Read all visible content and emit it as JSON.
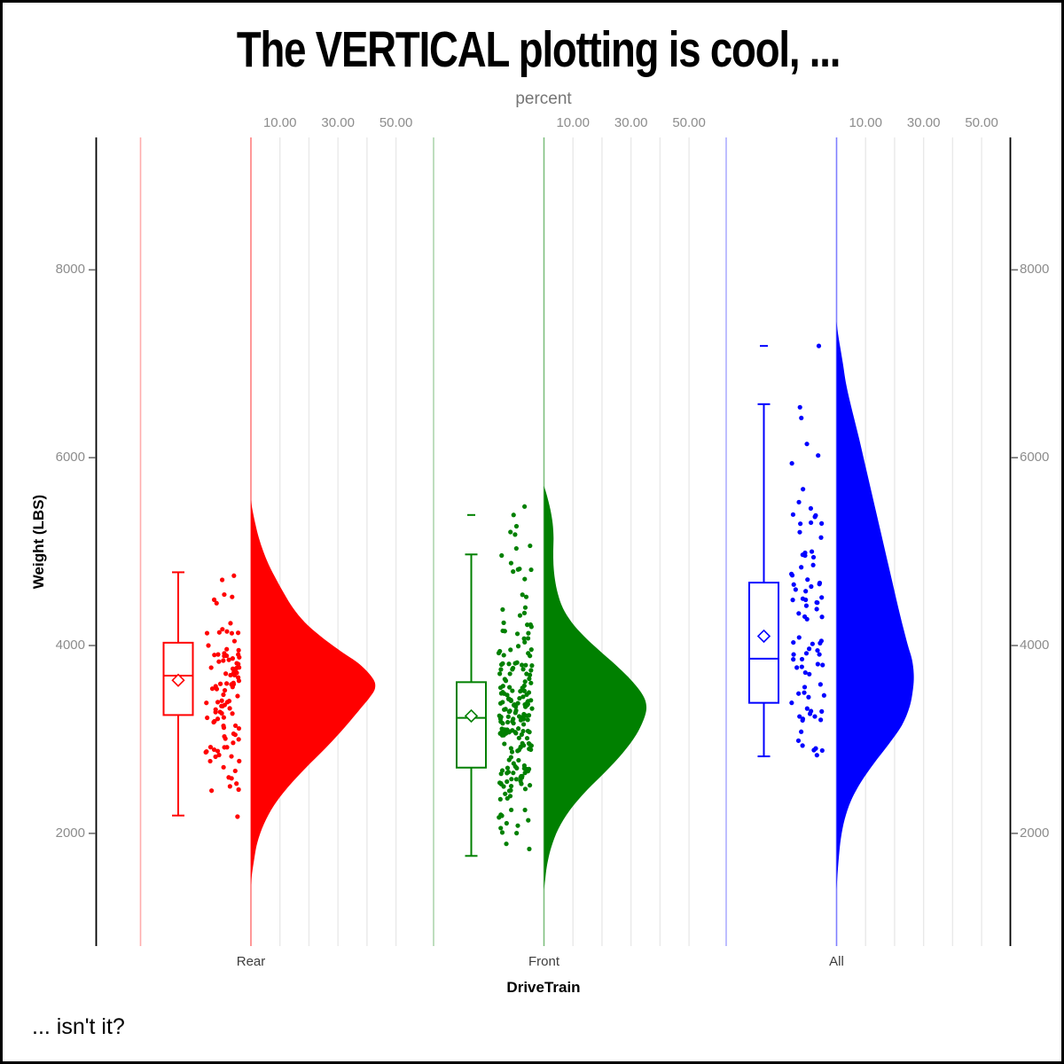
{
  "title": "The VERTICAL plotting is cool, ...",
  "caption": "... isn't it?",
  "colors": {
    "grid": "#e9e9e9",
    "axis_line": "#000000",
    "tick": "#6e6e6e",
    "numeric_label": "#8c8c8c",
    "category_label": "#3d3d3d",
    "percent_title": "#757575",
    "rear": "#ff0000",
    "front": "#008000",
    "all": "#0000ff"
  },
  "chart_data": {
    "type": "raincloud (half-violin + box + jitter), vertical",
    "x_axis": {
      "title": "DriveTrain",
      "categories": [
        "Rear",
        "Front",
        "All"
      ]
    },
    "weight_axis": {
      "title": "Weight (LBS)",
      "tick_labels": [
        "2000",
        "4000",
        "6000",
        "8000"
      ],
      "tick_values": [
        2000,
        4000,
        6000,
        8000
      ],
      "range_min": 800,
      "range_max": 9410,
      "mirrored_right_axis": true
    },
    "percent_axis": {
      "title": "percent",
      "tick_labels": [
        "10.00",
        "30.00",
        "50.00"
      ],
      "tick_values": [
        10,
        30,
        50
      ],
      "gridline_values": [
        10,
        20,
        30,
        40,
        50
      ]
    },
    "series": [
      {
        "name": "Rear",
        "color": "#ff0000",
        "box": {
          "whisker_low": 2190,
          "q1": 3260,
          "median": 3680,
          "mean": 3630,
          "q3": 4030,
          "whisker_high": 4780,
          "outliers": []
        },
        "violin_profile_weight_percent": [
          [
            1450,
            0
          ],
          [
            1550,
            0.3
          ],
          [
            1700,
            1
          ],
          [
            1900,
            2.2
          ],
          [
            2100,
            4.5
          ],
          [
            2300,
            8
          ],
          [
            2500,
            13
          ],
          [
            2700,
            19
          ],
          [
            2900,
            25.5
          ],
          [
            3100,
            31.5
          ],
          [
            3300,
            37
          ],
          [
            3450,
            41
          ],
          [
            3550,
            42.8
          ],
          [
            3650,
            42
          ],
          [
            3800,
            37.5
          ],
          [
            3950,
            30.5
          ],
          [
            4100,
            24
          ],
          [
            4250,
            18.5
          ],
          [
            4400,
            14.5
          ],
          [
            4550,
            11.5
          ],
          [
            4700,
            8.8
          ],
          [
            4850,
            6.3
          ],
          [
            5000,
            4.3
          ],
          [
            5150,
            2.7
          ],
          [
            5300,
            1.5
          ],
          [
            5450,
            0.5
          ],
          [
            5550,
            0
          ]
        ],
        "jitter": {
          "count": 105,
          "seed": 7,
          "min": 2170,
          "max": 4760,
          "extra_points": []
        }
      },
      {
        "name": "Front",
        "color": "#008000",
        "box": {
          "whisker_low": 1760,
          "q1": 2700,
          "median": 3230,
          "mean": 3250,
          "q3": 3610,
          "whisker_high": 4970,
          "outliers": [
            5390
          ]
        },
        "violin_profile_weight_percent": [
          [
            1400,
            0
          ],
          [
            1500,
            0.4
          ],
          [
            1650,
            1
          ],
          [
            1850,
            2.5
          ],
          [
            2050,
            5
          ],
          [
            2250,
            9
          ],
          [
            2450,
            14.5
          ],
          [
            2650,
            21
          ],
          [
            2850,
            27
          ],
          [
            3050,
            31.8
          ],
          [
            3250,
            34.8
          ],
          [
            3380,
            35.2
          ],
          [
            3500,
            33.5
          ],
          [
            3650,
            29.5
          ],
          [
            3800,
            24.5
          ],
          [
            3950,
            19
          ],
          [
            4100,
            13.8
          ],
          [
            4250,
            9.5
          ],
          [
            4400,
            6.5
          ],
          [
            4550,
            4.8
          ],
          [
            4700,
            3.8
          ],
          [
            4850,
            3.3
          ],
          [
            5000,
            3.2
          ],
          [
            5150,
            3.3
          ],
          [
            5300,
            3
          ],
          [
            5450,
            2.2
          ],
          [
            5600,
            1
          ],
          [
            5700,
            0
          ]
        ],
        "jitter": {
          "count": 215,
          "seed": 13,
          "min": 1780,
          "max": 5560,
          "extra_points": []
        }
      },
      {
        "name": "All",
        "color": "#0000ff",
        "box": {
          "whisker_low": 2820,
          "q1": 3390,
          "median": 3860,
          "mean": 4100,
          "q3": 4670,
          "whisker_high": 6570,
          "outliers": [
            7190
          ]
        },
        "violin_profile_weight_percent": [
          [
            1400,
            0
          ],
          [
            1550,
            0.3
          ],
          [
            1750,
            0.8
          ],
          [
            1950,
            1.5
          ],
          [
            2150,
            2.8
          ],
          [
            2350,
            5
          ],
          [
            2550,
            8.5
          ],
          [
            2750,
            13
          ],
          [
            2950,
            18
          ],
          [
            3150,
            22.5
          ],
          [
            3350,
            25.2
          ],
          [
            3550,
            26.4
          ],
          [
            3700,
            26.6
          ],
          [
            3850,
            26
          ],
          [
            4000,
            24.6
          ],
          [
            4200,
            22.9
          ],
          [
            4400,
            21.3
          ],
          [
            4600,
            19.8
          ],
          [
            4800,
            18.3
          ],
          [
            5000,
            16.8
          ],
          [
            5200,
            15.3
          ],
          [
            5400,
            13.8
          ],
          [
            5600,
            12.3
          ],
          [
            5800,
            10.8
          ],
          [
            6000,
            9.3
          ],
          [
            6200,
            7.8
          ],
          [
            6400,
            6.2
          ],
          [
            6600,
            4.6
          ],
          [
            6800,
            3.2
          ],
          [
            7000,
            2.2
          ],
          [
            7150,
            1.4
          ],
          [
            7300,
            0.6
          ],
          [
            7450,
            0
          ]
        ],
        "jitter": {
          "count": 85,
          "seed": 21,
          "min": 2830,
          "max": 6580,
          "extra_points": [
            [
              7190,
              -20
            ]
          ]
        }
      }
    ]
  }
}
